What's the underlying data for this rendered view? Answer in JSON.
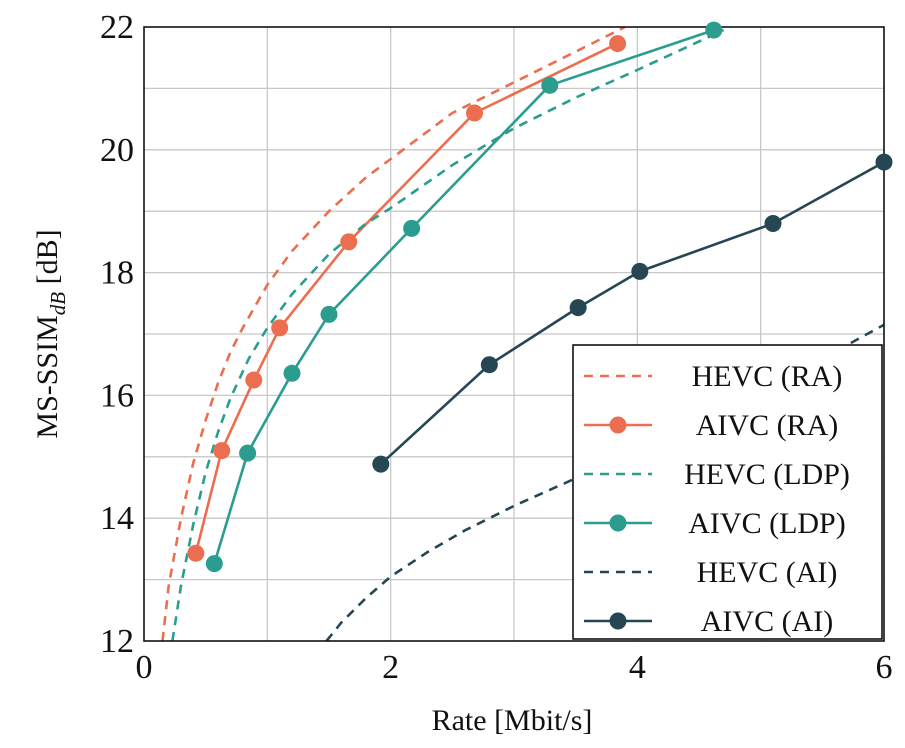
{
  "chart_data": {
    "type": "line",
    "xlabel": "Rate [Mbit/s]",
    "ylabel": "MS-SSIM",
    "ylabel_subscript": "dB",
    "ylabel_unit": " [dB]",
    "xlim": [
      0,
      6
    ],
    "ylim": [
      12,
      22
    ],
    "xticks": [
      0,
      2,
      4,
      6
    ],
    "yticks": [
      12,
      14,
      16,
      18,
      20,
      22
    ],
    "grid": true,
    "legend_position": "bottom-right",
    "colors": {
      "RA": "#ec6e50",
      "LDP": "#2a9d8f",
      "AI": "#264653"
    },
    "series": [
      {
        "name": "HEVC (RA)",
        "color": "#ec6e50",
        "style": "dashed",
        "markers": false,
        "x": [
          0.15,
          0.2,
          0.3,
          0.4,
          0.5,
          0.6,
          0.7,
          0.8,
          1.0,
          1.2,
          1.5,
          1.8,
          2.0,
          2.5,
          3.0,
          3.5,
          3.9
        ],
        "y": [
          12.0,
          12.9,
          14.0,
          14.9,
          15.6,
          16.2,
          16.7,
          17.1,
          17.8,
          18.35,
          19.0,
          19.55,
          19.85,
          20.6,
          21.1,
          21.6,
          22.0
        ]
      },
      {
        "name": "AIVC (RA)",
        "color": "#ec6e50",
        "style": "solid",
        "markers": true,
        "x": [
          0.42,
          0.63,
          0.89,
          1.1,
          1.66,
          2.68,
          3.84
        ],
        "y": [
          13.43,
          15.1,
          16.25,
          17.1,
          18.5,
          20.6,
          21.73
        ]
      },
      {
        "name": "HEVC (LDP)",
        "color": "#2a9d8f",
        "style": "dashed",
        "markers": false,
        "x": [
          0.23,
          0.3,
          0.4,
          0.5,
          0.6,
          0.7,
          0.85,
          1.0,
          1.2,
          1.5,
          1.8,
          2.0,
          2.5,
          3.0,
          3.5,
          4.0,
          4.7
        ],
        "y": [
          12.0,
          12.9,
          13.9,
          14.75,
          15.4,
          15.95,
          16.6,
          17.1,
          17.65,
          18.3,
          18.8,
          19.05,
          19.75,
          20.35,
          20.85,
          21.3,
          21.95
        ]
      },
      {
        "name": "AIVC (LDP)",
        "color": "#2a9d8f",
        "style": "solid",
        "markers": true,
        "x": [
          0.57,
          0.84,
          1.2,
          1.5,
          2.17,
          3.29,
          4.62
        ],
        "y": [
          13.26,
          15.06,
          16.36,
          17.32,
          18.72,
          21.05,
          21.95
        ]
      },
      {
        "name": "HEVC (AI)",
        "color": "#264653",
        "style": "dashed",
        "markers": false,
        "x": [
          1.48,
          1.6,
          1.8,
          2.0,
          2.3,
          2.6,
          3.0,
          3.5,
          4.0,
          4.5,
          5.0,
          5.5,
          6.0
        ],
        "y": [
          12.0,
          12.3,
          12.7,
          13.05,
          13.45,
          13.8,
          14.2,
          14.65,
          15.05,
          15.55,
          16.05,
          16.6,
          17.15
        ]
      },
      {
        "name": "AIVC (AI)",
        "color": "#264653",
        "style": "solid",
        "markers": true,
        "x": [
          1.92,
          2.8,
          3.52,
          4.02,
          5.1,
          6.0
        ],
        "y": [
          14.88,
          16.5,
          17.43,
          18.02,
          18.8,
          19.8
        ]
      }
    ]
  }
}
